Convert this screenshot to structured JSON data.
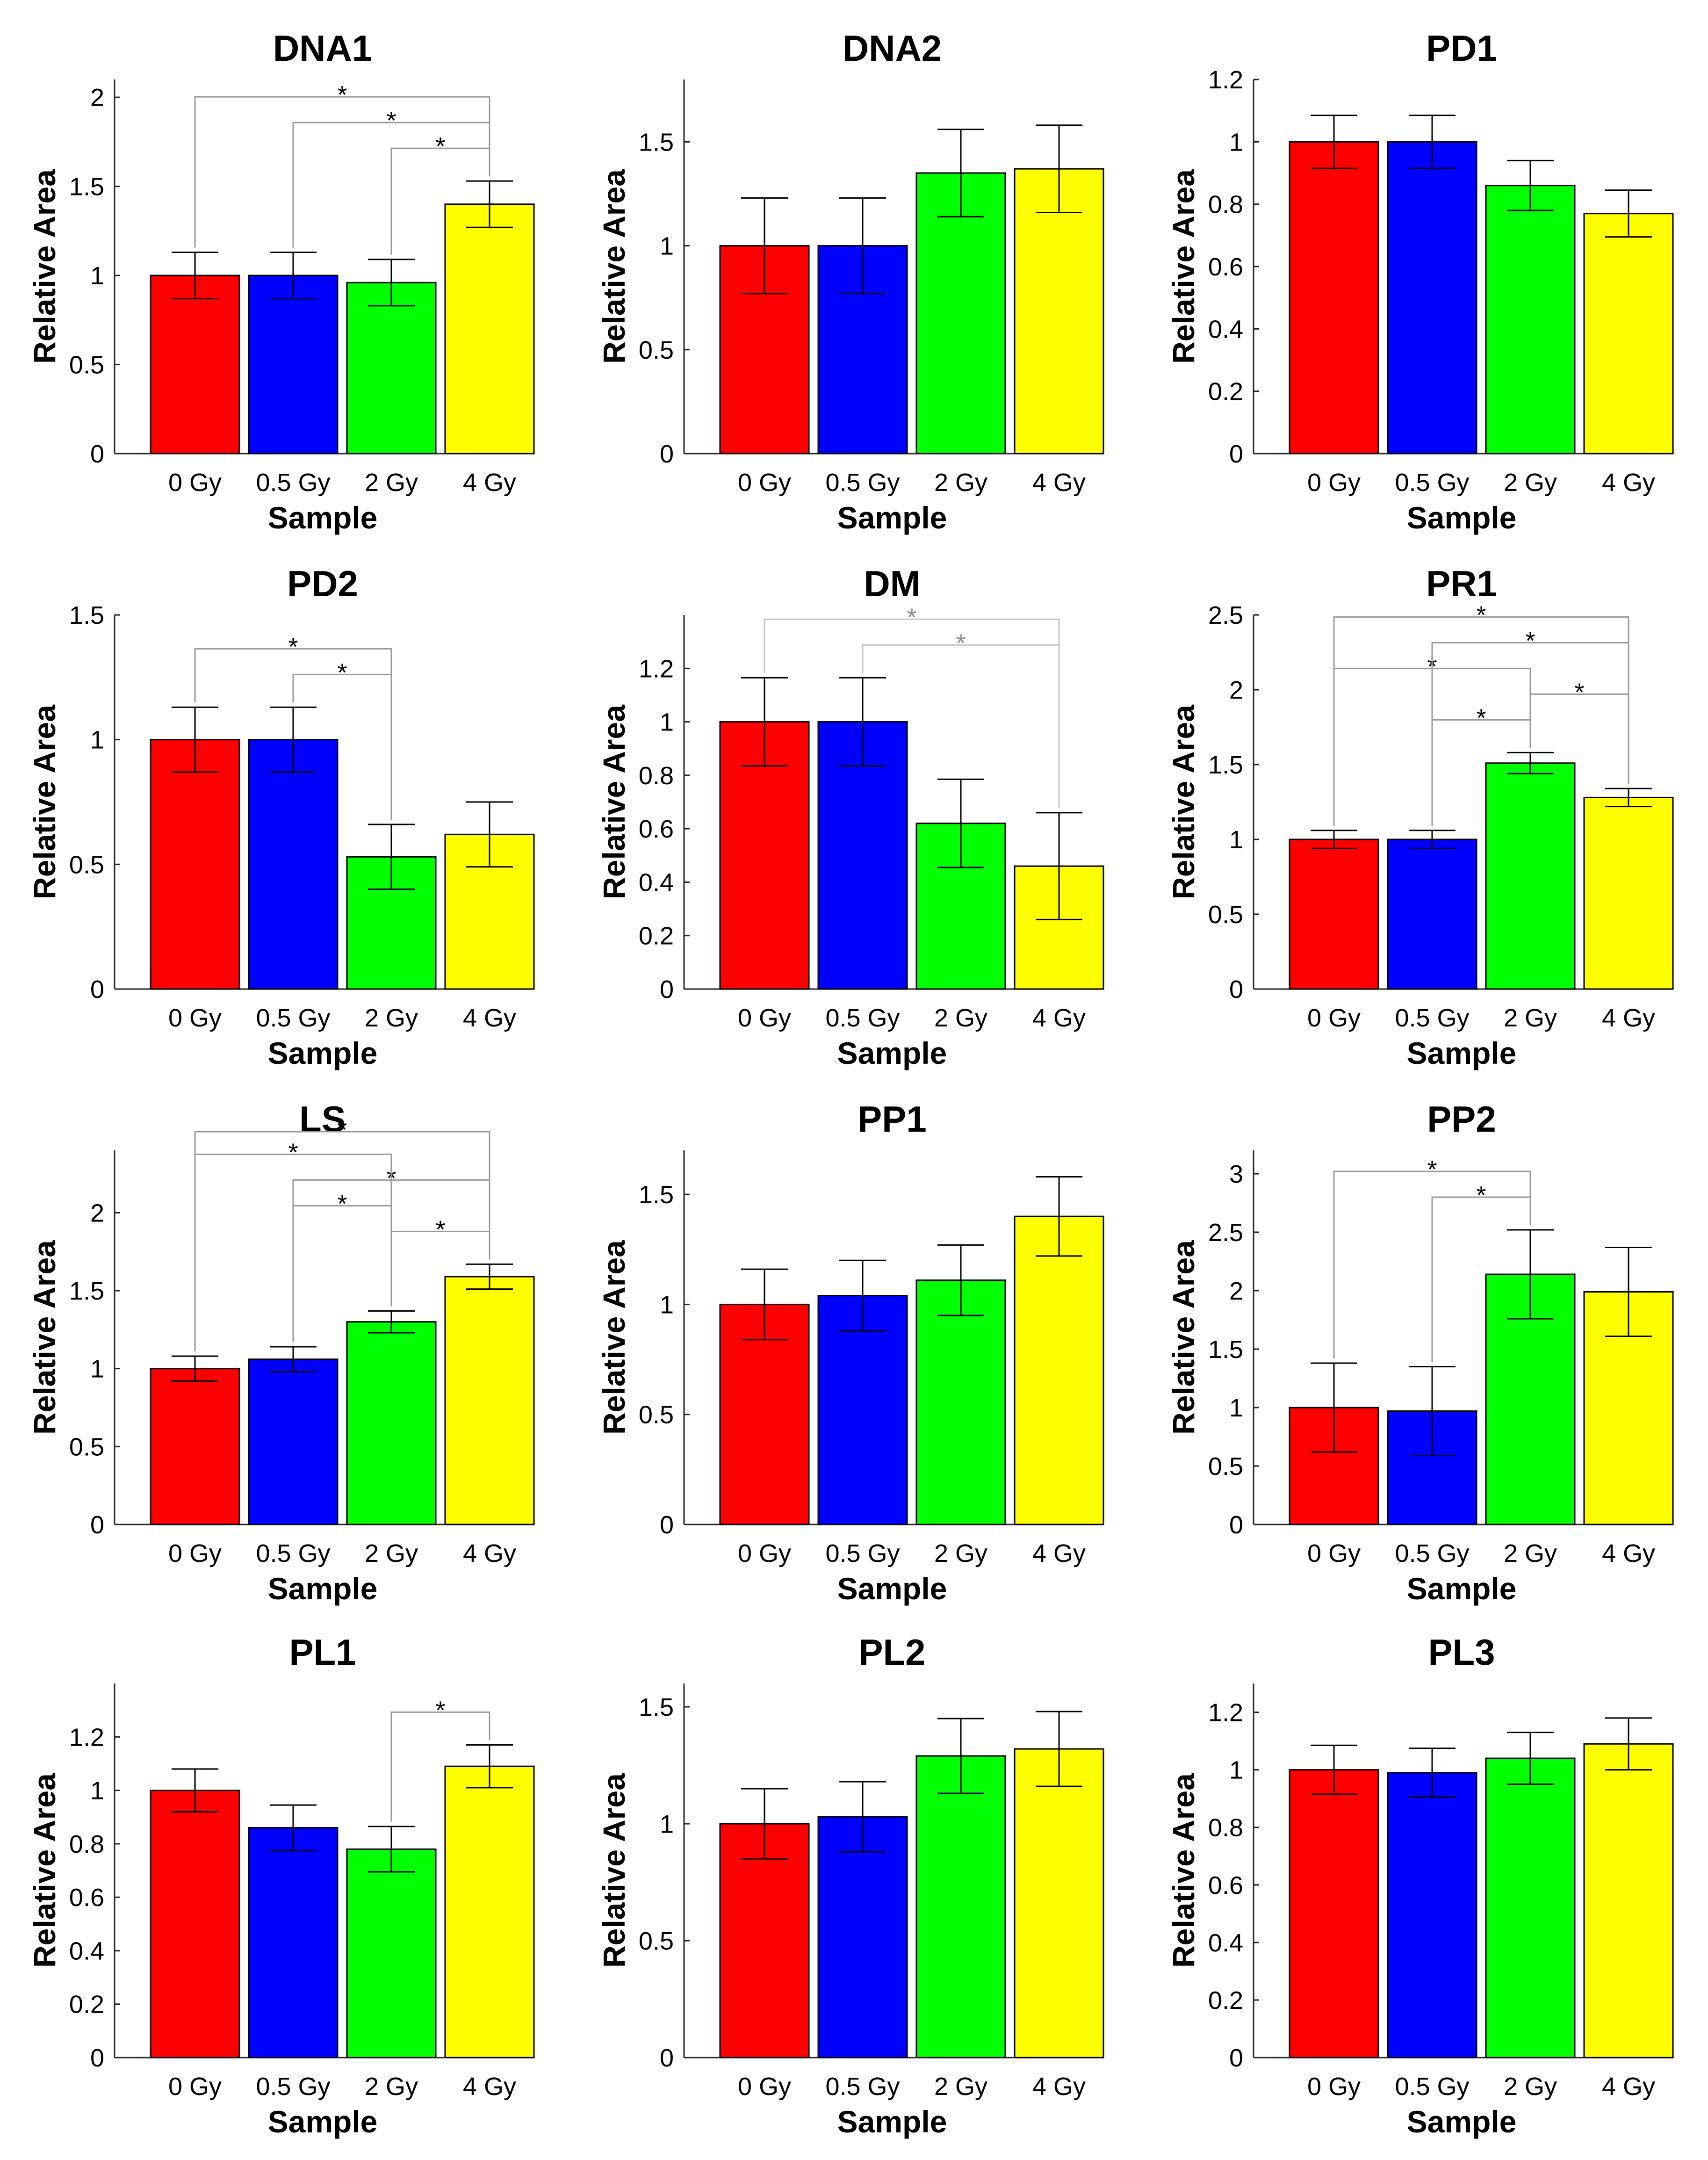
{
  "chart_data": [
    {
      "type": "bar",
      "title": "DNA1",
      "xlabel": "Sample",
      "ylabel": "Relative Area",
      "categories": [
        "0 Gy",
        "0.5 Gy",
        "2 Gy",
        "4 Gy"
      ],
      "values": [
        1.0,
        1.0,
        0.96,
        1.4
      ],
      "errors": [
        0.13,
        0.13,
        0.13,
        0.13
      ],
      "ylim": [
        0,
        2.1
      ],
      "yticks": [
        "0",
        "0.5",
        "1",
        "1.5",
        "2"
      ],
      "significance": [
        {
          "from": 0,
          "to": 3,
          "label": "*"
        },
        {
          "from": 1,
          "to": 3,
          "label": "*"
        },
        {
          "from": 2,
          "to": 3,
          "label": "*"
        }
      ]
    },
    {
      "type": "bar",
      "title": "DNA2",
      "xlabel": "Sample",
      "ylabel": "Relative Area",
      "categories": [
        "0 Gy",
        "0.5 Gy",
        "2 Gy",
        "4 Gy"
      ],
      "values": [
        1.0,
        1.0,
        1.35,
        1.37
      ],
      "errors": [
        0.23,
        0.23,
        0.21,
        0.21
      ],
      "ylim": [
        0,
        1.8
      ],
      "yticks": [
        "0",
        "0.5",
        "1",
        "1.5"
      ],
      "significance": []
    },
    {
      "type": "bar",
      "title": "PD1",
      "xlabel": "Sample",
      "ylabel": "Relative Area",
      "categories": [
        "0 Gy",
        "0.5 Gy",
        "2 Gy",
        "4 Gy"
      ],
      "values": [
        1.0,
        1.0,
        0.86,
        0.77
      ],
      "errors": [
        0.085,
        0.085,
        0.08,
        0.075
      ],
      "ylim": [
        0,
        1.2
      ],
      "yticks": [
        "0",
        "0.2",
        "0.4",
        "0.6",
        "0.8",
        "1",
        "1.2"
      ],
      "significance": []
    },
    {
      "type": "bar",
      "title": "PD2",
      "xlabel": "Sample",
      "ylabel": "Relative Area",
      "categories": [
        "0 Gy",
        "0.5 Gy",
        "2 Gy",
        "4 Gy"
      ],
      "values": [
        1.0,
        1.0,
        0.53,
        0.62
      ],
      "errors": [
        0.13,
        0.13,
        0.13,
        0.13
      ],
      "ylim": [
        0,
        1.5
      ],
      "yticks": [
        "0",
        "0.5",
        "1",
        "1.5"
      ],
      "significance": [
        {
          "from": 0,
          "to": 2,
          "label": "*"
        },
        {
          "from": 1,
          "to": 2,
          "label": "*"
        }
      ]
    },
    {
      "type": "bar",
      "title": "DM",
      "xlabel": "Sample",
      "ylabel": "Relative Area",
      "categories": [
        "0 Gy",
        "0.5 Gy",
        "2 Gy",
        "4 Gy"
      ],
      "values": [
        1.0,
        1.0,
        0.62,
        0.46
      ],
      "errors": [
        0.165,
        0.165,
        0.165,
        0.2
      ],
      "ylim": [
        0,
        1.4
      ],
      "yticks": [
        "0",
        "0.2",
        "0.4",
        "0.6",
        "0.8",
        "1",
        "1.2"
      ],
      "significance": [
        {
          "from": 0,
          "to": 3,
          "label": "*",
          "muted": true
        },
        {
          "from": 1,
          "to": 3,
          "label": "*",
          "muted": true
        }
      ]
    },
    {
      "type": "bar",
      "title": "PR1",
      "xlabel": "Sample",
      "ylabel": "Relative Area",
      "categories": [
        "0 Gy",
        "0.5 Gy",
        "2 Gy",
        "4 Gy"
      ],
      "values": [
        1.0,
        1.0,
        1.51,
        1.28
      ],
      "errors": [
        0.06,
        0.06,
        0.07,
        0.06
      ],
      "ylim": [
        0,
        2.5
      ],
      "yticks": [
        "0",
        "0.5",
        "1",
        "1.5",
        "2",
        "2.5"
      ],
      "significance": [
        {
          "from": 0,
          "to": 3,
          "label": "*"
        },
        {
          "from": 0,
          "to": 2,
          "label": "*"
        },
        {
          "from": 1,
          "to": 3,
          "label": "*"
        },
        {
          "from": 1,
          "to": 2,
          "label": "*"
        },
        {
          "from": 2,
          "to": 3,
          "label": "*"
        }
      ]
    },
    {
      "type": "bar",
      "title": "LS",
      "xlabel": "Sample",
      "ylabel": "Relative Area",
      "categories": [
        "0 Gy",
        "0.5 Gy",
        "2 Gy",
        "4 Gy"
      ],
      "values": [
        1.0,
        1.06,
        1.3,
        1.59
      ],
      "errors": [
        0.08,
        0.08,
        0.07,
        0.08
      ],
      "ylim": [
        0,
        2.4
      ],
      "yticks": [
        "0",
        "0.5",
        "1",
        "1.5",
        "2"
      ],
      "significance": [
        {
          "from": 0,
          "to": 3,
          "label": "*"
        },
        {
          "from": 1,
          "to": 3,
          "label": "*"
        },
        {
          "from": 2,
          "to": 3,
          "label": "*"
        },
        {
          "from": 0,
          "to": 2,
          "label": "*"
        },
        {
          "from": 1,
          "to": 2,
          "label": "*"
        }
      ]
    },
    {
      "type": "bar",
      "title": "PP1",
      "xlabel": "Sample",
      "ylabel": "Relative Area",
      "categories": [
        "0 Gy",
        "0.5 Gy",
        "2 Gy",
        "4 Gy"
      ],
      "values": [
        1.0,
        1.04,
        1.11,
        1.4
      ],
      "errors": [
        0.16,
        0.16,
        0.16,
        0.18
      ],
      "ylim": [
        0,
        1.7
      ],
      "yticks": [
        "0",
        "0.5",
        "1",
        "1.5"
      ],
      "significance": []
    },
    {
      "type": "bar",
      "title": "PP2",
      "xlabel": "Sample",
      "ylabel": "Relative Area",
      "categories": [
        "0 Gy",
        "0.5 Gy",
        "2 Gy",
        "4 Gy"
      ],
      "values": [
        1.0,
        0.97,
        2.14,
        1.99
      ],
      "errors": [
        0.38,
        0.38,
        0.38,
        0.38
      ],
      "ylim": [
        0,
        3.2
      ],
      "yticks": [
        "0",
        "0.5",
        "1",
        "1.5",
        "2",
        "2.5",
        "3"
      ],
      "significance": [
        {
          "from": 0,
          "to": 2,
          "label": "*"
        },
        {
          "from": 1,
          "to": 2,
          "label": "*"
        }
      ]
    },
    {
      "type": "bar",
      "title": "PL1",
      "xlabel": "Sample",
      "ylabel": "Relative Area",
      "categories": [
        "0 Gy",
        "0.5 Gy",
        "2 Gy",
        "4 Gy"
      ],
      "values": [
        1.0,
        0.86,
        0.78,
        1.09
      ],
      "errors": [
        0.08,
        0.085,
        0.085,
        0.08
      ],
      "ylim": [
        0,
        1.4
      ],
      "yticks": [
        "0",
        "0.2",
        "0.4",
        "0.6",
        "0.8",
        "1",
        "1.2"
      ],
      "significance": [
        {
          "from": 2,
          "to": 3,
          "label": "*"
        }
      ]
    },
    {
      "type": "bar",
      "title": "PL2",
      "xlabel": "Sample",
      "ylabel": "Relative Area",
      "categories": [
        "0 Gy",
        "0.5 Gy",
        "2 Gy",
        "4 Gy"
      ],
      "values": [
        1.0,
        1.03,
        1.29,
        1.32
      ],
      "errors": [
        0.15,
        0.15,
        0.16,
        0.16
      ],
      "ylim": [
        0,
        1.6
      ],
      "yticks": [
        "0",
        "0.5",
        "1",
        "1.5"
      ],
      "significance": []
    },
    {
      "type": "bar",
      "title": "PL3",
      "xlabel": "Sample",
      "ylabel": "Relative Area",
      "categories": [
        "0 Gy",
        "0.5 Gy",
        "2 Gy",
        "4 Gy"
      ],
      "values": [
        1.0,
        0.99,
        1.04,
        1.09
      ],
      "errors": [
        0.085,
        0.085,
        0.09,
        0.09
      ],
      "ylim": [
        0,
        1.3
      ],
      "yticks": [
        "0",
        "0.2",
        "0.4",
        "0.6",
        "0.8",
        "1",
        "1.2"
      ],
      "significance": []
    }
  ],
  "colors": {
    "bars": [
      "#ff0000",
      "#0000ff",
      "#00ff00",
      "#ffff00"
    ],
    "axis": "#262626",
    "bracket": "#9a9a9a",
    "bracket_muted": "#c4c4c4",
    "star": "#000000",
    "star_muted": "#8c8c8c"
  }
}
